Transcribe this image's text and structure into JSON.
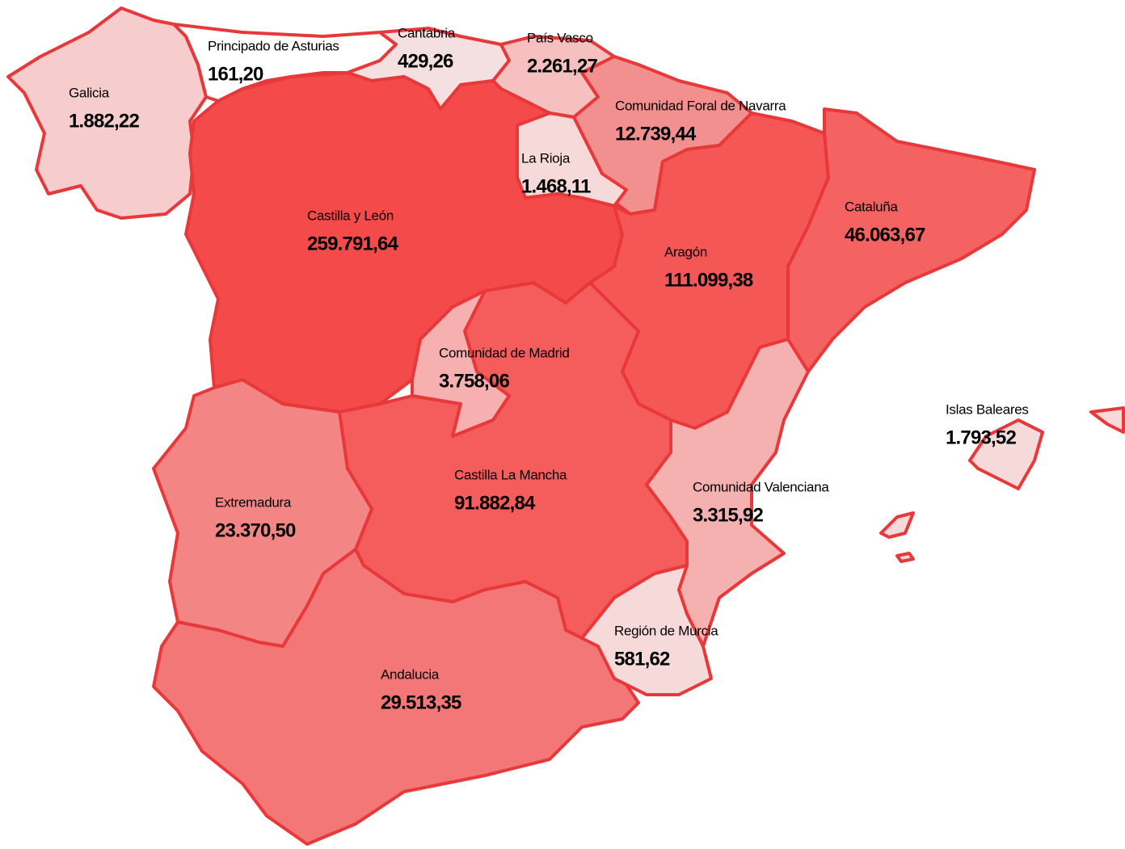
{
  "regions": [
    {
      "name": "Galicia",
      "value": "1.882,22"
    },
    {
      "name": "Principado de Asturias",
      "value": "161,20"
    },
    {
      "name": "Cantabria",
      "value": "429,26"
    },
    {
      "name": "País Vasco",
      "value": "2.261,27"
    },
    {
      "name": "Comunidad Foral de Navarra",
      "value": "12.739,44"
    },
    {
      "name": "La Rioja",
      "value": "1.468,11"
    },
    {
      "name": "Castilla y León",
      "value": "259.791,64"
    },
    {
      "name": "Aragón",
      "value": "111.099,38"
    },
    {
      "name": "Cataluña",
      "value": "46.063,67"
    },
    {
      "name": "Comunidad de Madrid",
      "value": "3.758,06"
    },
    {
      "name": "Castilla La Mancha",
      "value": "91.882,84"
    },
    {
      "name": "Comunidad Valenciana",
      "value": "3.315,92"
    },
    {
      "name": "Extremadura",
      "value": "23.370,50"
    },
    {
      "name": "Andalucia",
      "value": "29.513,35"
    },
    {
      "name": "Región de Murcia",
      "value": "581,62"
    },
    {
      "name": "Islas Baleares",
      "value": "1.793,52"
    }
  ]
}
